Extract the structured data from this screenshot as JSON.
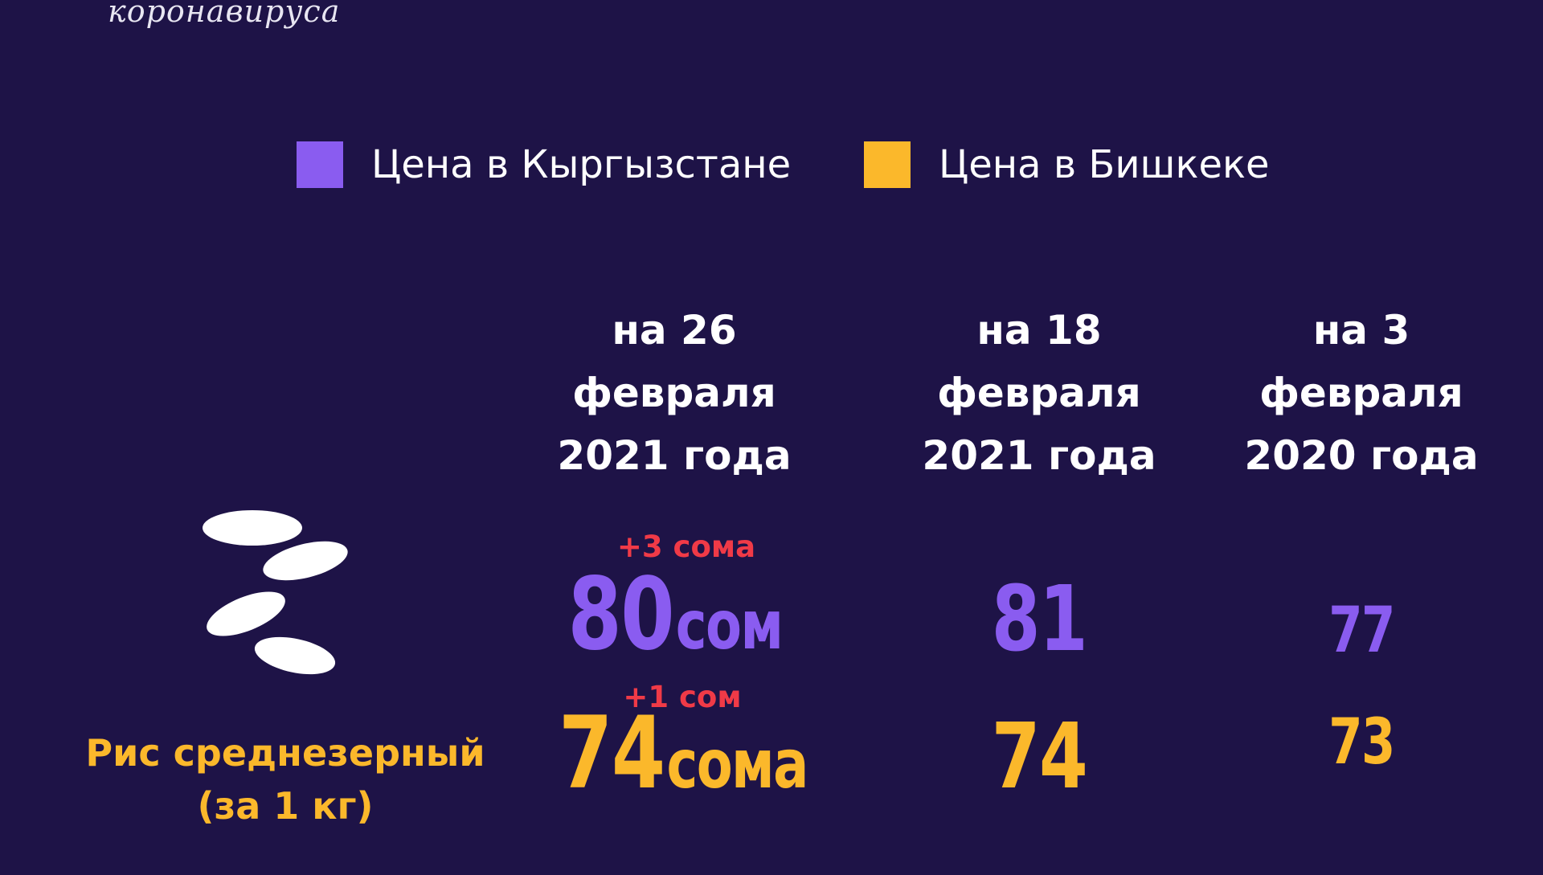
{
  "subtitle": "коронавируса",
  "legend": [
    {
      "label": "Цена в Кыргызстане",
      "color": "#8a5cf0"
    },
    {
      "label": "Цена в Бишкеке",
      "color": "#fbb82b"
    }
  ],
  "columns": [
    {
      "line1": "на 26",
      "line2": "февраля",
      "line3": "2021 года"
    },
    {
      "line1": "на 18",
      "line2": "февраля",
      "line3": "2021 года"
    },
    {
      "line1": "на 3",
      "line2": "февраля",
      "line3": "2020 года"
    }
  ],
  "product": {
    "icon": "rice-grains-icon",
    "name_line1": "Рис среднезерный",
    "name_line2": "(за 1 кг)",
    "kyrgyzstan": {
      "current_value": "80",
      "current_unit": "сом",
      "delta": "+3 сома",
      "prev_week": "81",
      "prev_year": "77"
    },
    "bishkek": {
      "current_value": "74",
      "current_unit": "сома",
      "delta": "+1 сом",
      "prev_week": "74",
      "prev_year": "73"
    }
  },
  "colors": {
    "background": "#1e1347",
    "kyrgyzstan": "#8a5cf0",
    "bishkek": "#fbb82b",
    "delta": "#f03a47",
    "text": "#ffffff"
  }
}
